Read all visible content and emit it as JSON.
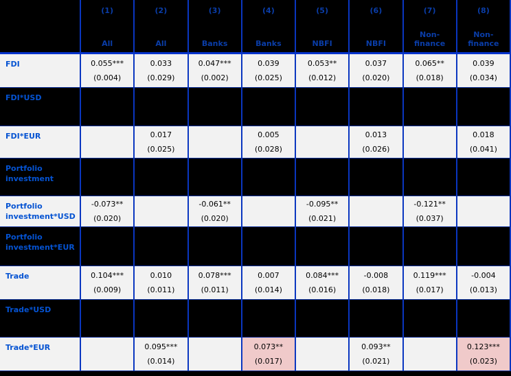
{
  "table": {
    "columns": [
      {
        "num": "(1)",
        "group": "All"
      },
      {
        "num": "(2)",
        "group": "All"
      },
      {
        "num": "(3)",
        "group": "Banks"
      },
      {
        "num": "(4)",
        "group": "Banks"
      },
      {
        "num": "(5)",
        "group": "NBFI"
      },
      {
        "num": "(6)",
        "group": "NBFI"
      },
      {
        "num": "(7)",
        "group": "Non-finance"
      },
      {
        "num": "(8)",
        "group": "Non-finance"
      }
    ],
    "rows": [
      {
        "label": "FDI",
        "type": "data",
        "cells": [
          {
            "coef": "0.055***",
            "se": "(0.004)"
          },
          {
            "coef": "0.033",
            "se": "(0.029)"
          },
          {
            "coef": "0.047***",
            "se": "(0.002)"
          },
          {
            "coef": "0.039",
            "se": "(0.025)"
          },
          {
            "coef": "0.053**",
            "se": "(0.012)"
          },
          {
            "coef": "0.037",
            "se": "(0.020)"
          },
          {
            "coef": "0.065**",
            "se": "(0.018)"
          },
          {
            "coef": "0.039",
            "se": "(0.034)"
          }
        ]
      },
      {
        "label": "FDI*USD",
        "type": "empty",
        "cells": [
          null,
          null,
          null,
          null,
          null,
          null,
          null,
          null
        ]
      },
      {
        "label": "FDI*EUR",
        "type": "data",
        "cells": [
          null,
          {
            "coef": "0.017",
            "se": "(0.025)"
          },
          null,
          {
            "coef": "0.005",
            "se": "(0.028)"
          },
          null,
          {
            "coef": "0.013",
            "se": "(0.026)"
          },
          null,
          {
            "coef": "0.018",
            "se": "(0.041)"
          }
        ]
      },
      {
        "label": "Portfolio investment",
        "type": "empty",
        "cells": [
          null,
          null,
          null,
          null,
          null,
          null,
          null,
          null
        ]
      },
      {
        "label": "Portfolio investment*USD",
        "type": "data",
        "cells": [
          {
            "coef": "-0.073**",
            "se": "(0.020)"
          },
          null,
          {
            "coef": "-0.061**",
            "se": "(0.020)"
          },
          null,
          {
            "coef": "-0.095**",
            "se": "(0.021)"
          },
          null,
          {
            "coef": "-0.121**",
            "se": "(0.037)"
          },
          null
        ]
      },
      {
        "label": "Portfolio investment*EUR",
        "type": "empty",
        "cells": [
          null,
          null,
          null,
          null,
          null,
          null,
          null,
          null
        ]
      },
      {
        "label": "Trade",
        "type": "data",
        "cells": [
          {
            "coef": "0.104***",
            "se": "(0.009)"
          },
          {
            "coef": "0.010",
            "se": "(0.011)"
          },
          {
            "coef": "0.078***",
            "se": "(0.011)"
          },
          {
            "coef": "0.007",
            "se": "(0.014)"
          },
          {
            "coef": "0.084***",
            "se": "(0.016)"
          },
          {
            "coef": "-0.008",
            "se": "(0.018)"
          },
          {
            "coef": "0.119***",
            "se": "(0.017)"
          },
          {
            "coef": "-0.004",
            "se": "(0.013)"
          }
        ]
      },
      {
        "label": "Trade*USD",
        "type": "empty",
        "cells": [
          null,
          null,
          null,
          null,
          null,
          null,
          null,
          null
        ]
      },
      {
        "label": "Trade*EUR",
        "type": "data",
        "cells": [
          null,
          {
            "coef": "0.095***",
            "se": "(0.014)"
          },
          null,
          {
            "coef": "0.073**",
            "se": "(0.017)",
            "highlight": true
          },
          null,
          {
            "coef": "0.093**",
            "se": "(0.021)"
          },
          null,
          {
            "coef": "0.123***",
            "se": "(0.023)",
            "highlight": true
          }
        ]
      }
    ]
  },
  "colors": {
    "background": "#000000",
    "grid_line_blue": "#0a36c0",
    "header_underline_blue": "#0533cc",
    "header_text_blue": "#0a3da8",
    "row_label_blue": "#0553d2",
    "light_row_background": "#f2f2f2",
    "highlight_pink": "#f0caca",
    "value_text": "#000000"
  }
}
